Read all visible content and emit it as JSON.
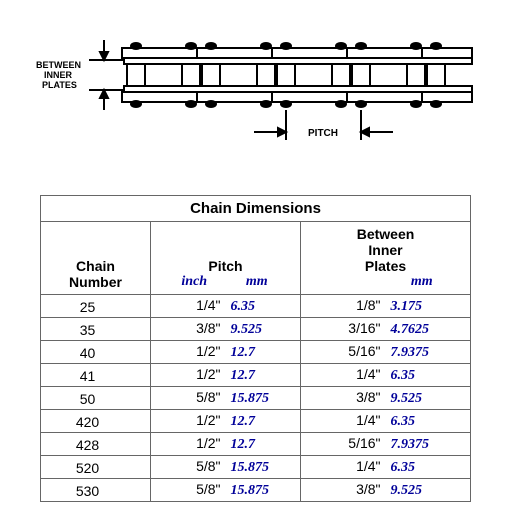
{
  "diagram": {
    "label_between": "BETWEEN\nINNER\nPLATES",
    "label_pitch": "PITCH",
    "stroke": "#000000",
    "fill": "#ffffff"
  },
  "table": {
    "title": "Chain Dimensions",
    "headers": {
      "chain": "Chain\nNumber",
      "pitch": "Pitch",
      "pitch_in": "inch",
      "pitch_mm": "mm",
      "bip": "Between\nInner\nPlates",
      "bip_mm": "mm"
    },
    "rows": [
      {
        "num": "25",
        "pin": "1/4\"",
        "pmm": "6.35",
        "bin": "1/8\"",
        "bmm": "3.175"
      },
      {
        "num": "35",
        "pin": "3/8\"",
        "pmm": "9.525",
        "bin": "3/16\"",
        "bmm": "4.7625"
      },
      {
        "num": "40",
        "pin": "1/2\"",
        "pmm": "12.7",
        "bin": "5/16\"",
        "bmm": "7.9375"
      },
      {
        "num": "41",
        "pin": "1/2\"",
        "pmm": "12.7",
        "bin": "1/4\"",
        "bmm": "6.35"
      },
      {
        "num": "50",
        "pin": "5/8\"",
        "pmm": "15.875",
        "bin": "3/8\"",
        "bmm": "9.525"
      },
      {
        "num": "420",
        "pin": "1/2\"",
        "pmm": "12.7",
        "bin": "1/4\"",
        "bmm": "6.35"
      },
      {
        "num": "428",
        "pin": "1/2\"",
        "pmm": "12.7",
        "bin": "5/16\"",
        "bmm": "7.9375"
      },
      {
        "num": "520",
        "pin": "5/8\"",
        "pmm": "15.875",
        "bin": "1/4\"",
        "bmm": "6.35"
      },
      {
        "num": "530",
        "pin": "5/8\"",
        "pmm": "15.875",
        "bin": "3/8\"",
        "bmm": "9.525"
      }
    ],
    "colors": {
      "accent": "#000099",
      "border": "#666666",
      "bg": "#ffffff"
    }
  }
}
